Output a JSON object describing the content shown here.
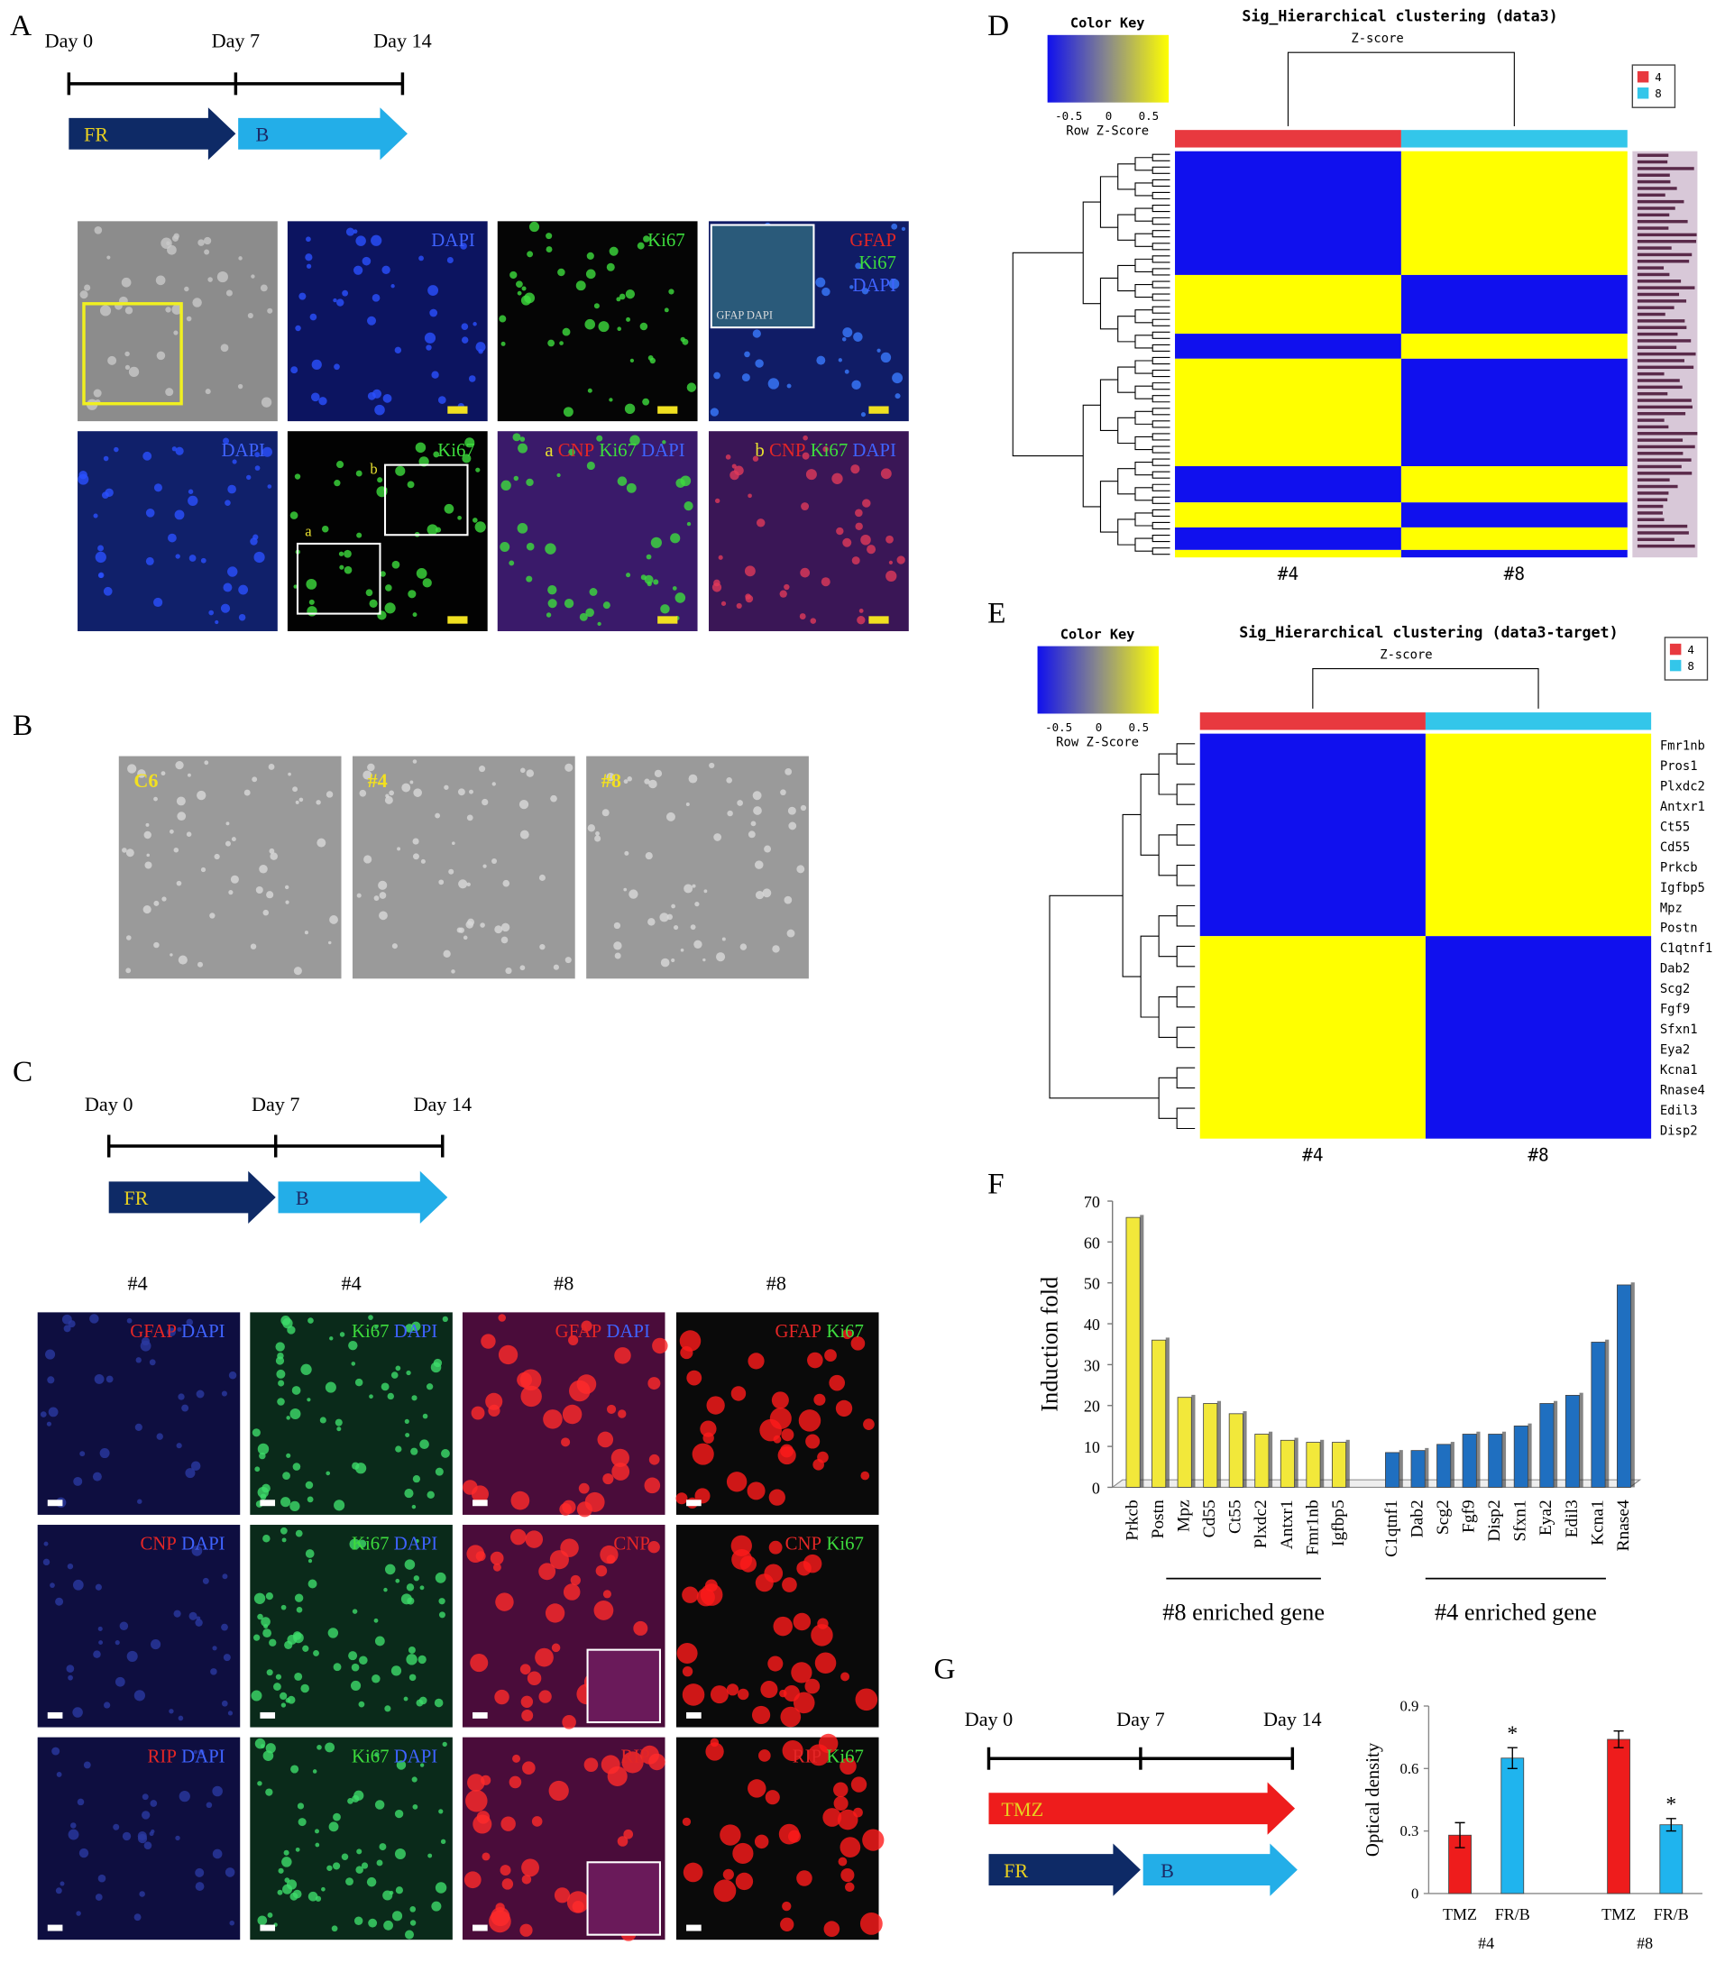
{
  "panel_letters": [
    "A",
    "B",
    "C",
    "D",
    "E",
    "F",
    "G"
  ],
  "panel_A": {
    "timeline": {
      "days": [
        "Day 0",
        "Day 7",
        "Day 14"
      ],
      "arrows": [
        "FR",
        "B"
      ]
    },
    "images": [
      {
        "labels": []
      },
      {
        "labels": [
          {
            "text": "DAPI",
            "color": "#3f63ff"
          }
        ]
      },
      {
        "labels": [
          {
            "text": "Ki67",
            "color": "#3ddc3d"
          }
        ]
      },
      {
        "labels": [
          {
            "text": "GFAP",
            "color": "#e42626"
          },
          {
            "text": "Ki67",
            "color": "#3ddc3d"
          },
          {
            "text": "DAPI",
            "color": "#3f63ff"
          }
        ],
        "inset": "GFAP DAPI"
      },
      {
        "labels": [
          {
            "text": "DAPI",
            "color": "#3f63ff"
          }
        ]
      },
      {
        "labels": [
          {
            "text": "Ki67",
            "color": "#3ddc3d"
          }
        ],
        "boxes": [
          "a",
          "b"
        ]
      },
      {
        "labels": [
          {
            "text": "a",
            "color": "#e8e030"
          },
          {
            "text": "CNP",
            "color": "#e42626"
          },
          {
            "text": "Ki67",
            "color": "#3ddc3d"
          },
          {
            "text": "DAPI",
            "color": "#3f63ff"
          }
        ]
      },
      {
        "labels": [
          {
            "text": "b",
            "color": "#e8e030"
          },
          {
            "text": "CNP",
            "color": "#e42626"
          },
          {
            "text": "Ki67",
            "color": "#3ddc3d"
          },
          {
            "text": "DAPI",
            "color": "#3f63ff"
          }
        ]
      }
    ]
  },
  "panel_B": {
    "images": [
      "C6",
      "#4",
      "#8"
    ]
  },
  "panel_C": {
    "timeline": {
      "days": [
        "Day 0",
        "Day 7",
        "Day 14"
      ],
      "arrows": [
        "FR",
        "B"
      ]
    },
    "column_headers": [
      "#4",
      "#4",
      "#8",
      "#8"
    ],
    "cells": [
      [
        {
          "text": "GFAP",
          "color": "#e42626"
        },
        {
          "text": "DAPI",
          "color": "#3f63ff"
        }
      ],
      [
        {
          "text": "Ki67",
          "color": "#3ddc3d"
        },
        {
          "text": "DAPI",
          "color": "#3f63ff"
        }
      ],
      [
        {
          "text": "GFAP",
          "color": "#e42626"
        },
        {
          "text": "DAPI",
          "color": "#3f63ff"
        }
      ],
      [
        {
          "text": "GFAP",
          "color": "#e42626"
        },
        {
          "text": "Ki67",
          "color": "#3ddc3d"
        }
      ],
      [
        {
          "text": "CNP",
          "color": "#e42626"
        },
        {
          "text": "DAPI",
          "color": "#3f63ff"
        }
      ],
      [
        {
          "text": "Ki67",
          "color": "#3ddc3d"
        },
        {
          "text": "DAPI",
          "color": "#3f63ff"
        }
      ],
      [
        {
          "text": "CNP",
          "color": "#e42626"
        }
      ],
      [
        {
          "text": "CNP",
          "color": "#e42626"
        },
        {
          "text": "Ki67",
          "color": "#3ddc3d"
        }
      ],
      [
        {
          "text": "RIP",
          "color": "#e42626"
        },
        {
          "text": "DAPI",
          "color": "#3f63ff"
        }
      ],
      [
        {
          "text": "Ki67",
          "color": "#3ddc3d"
        },
        {
          "text": "DAPI",
          "color": "#3f63ff"
        }
      ],
      [
        {
          "text": "RIP",
          "color": "#e42626"
        }
      ],
      [
        {
          "text": "RIP",
          "color": "#e42626"
        },
        {
          "text": "Ki67",
          "color": "#3ddc3d"
        }
      ]
    ]
  },
  "panel_D": {
    "title": "Sig_Hierarchical clustering (data3)",
    "subtitle": "Z-score",
    "color_key": {
      "title": "Color Key",
      "ticks": [
        -0.5,
        0,
        0.5
      ],
      "label": "Row Z-Score"
    },
    "legend": [
      {
        "name": "4",
        "color": "#e8393f"
      },
      {
        "name": "8",
        "color": "#33c6ea"
      }
    ],
    "columns": [
      "#4",
      "#8"
    ]
  },
  "panel_E": {
    "title": "Sig_Hierarchical clustering (data3-target)",
    "subtitle": "Z-score",
    "color_key": {
      "title": "Color Key",
      "ticks": [
        -0.5,
        0,
        0.5
      ],
      "label": "Row Z-Score"
    },
    "legend": [
      {
        "name": "4",
        "color": "#e8393f"
      },
      {
        "name": "8",
        "color": "#33c6ea"
      }
    ],
    "columns": [
      "#4",
      "#8"
    ],
    "genes": [
      "Fmr1nb",
      "Pros1",
      "Plxdc2",
      "Antxr1",
      "Ct55",
      "Cd55",
      "Prkcb",
      "Igfbp5",
      "Mpz",
      "Postn",
      "C1qtnf1",
      "Dab2",
      "Scg2",
      "Fgf9",
      "Sfxn1",
      "Eya2",
      "Kcna1",
      "Rnase4",
      "Edil3",
      "Disp2"
    ]
  },
  "panel_G": {
    "timeline": {
      "days": [
        "Day 0",
        "Day 7",
        "Day 14"
      ],
      "arrows": [
        "TMZ",
        "FR",
        "B"
      ]
    }
  },
  "chart_data": [
    {
      "type": "bar",
      "y_label": "Induction fold",
      "categories": [
        "Prkcb",
        "Postn",
        "Mpz",
        "Cd55",
        "Ct55",
        "Plxdc2",
        "Antxr1",
        "Fmr1nb",
        "Igfbp5",
        "C1qtnf1",
        "Dab2",
        "Scg2",
        "Fgf9",
        "Disp2",
        "Sfxn1",
        "Eya2",
        "Edil3",
        "Kcna1",
        "Rnase4"
      ],
      "series": [
        {
          "name": "#8 enriched gene",
          "color": "#f2e83a",
          "values": [
            66,
            36,
            22,
            20.5,
            18,
            13,
            11.5,
            11,
            11,
            null,
            null,
            null,
            null,
            null,
            null,
            null,
            null,
            null,
            null
          ]
        },
        {
          "name": "#4 enriched gene",
          "color": "#1f6fc0",
          "values": [
            null,
            null,
            null,
            null,
            null,
            null,
            null,
            null,
            null,
            8.5,
            9,
            10.5,
            13,
            13,
            15,
            20.5,
            22.5,
            35.5,
            49.5
          ]
        }
      ],
      "ylim": [
        0,
        70
      ],
      "yticks": [
        0,
        10,
        20,
        30,
        40,
        50,
        60,
        70
      ]
    },
    {
      "type": "bar",
      "y_label": "Optical density",
      "categories": [
        "TMZ",
        "FR/B",
        "TMZ",
        "FR/B"
      ],
      "group_labels": [
        "#4",
        "#8"
      ],
      "values": [
        0.28,
        0.65,
        0.74,
        0.33
      ],
      "errors": [
        0.06,
        0.05,
        0.04,
        0.03
      ],
      "colors": [
        "#ee1c1c",
        "#1fb4ee",
        "#ee1c1c",
        "#1fb4ee"
      ],
      "annotations": [
        null,
        "*",
        null,
        "*"
      ],
      "ylim": [
        0,
        0.9
      ],
      "yticks": [
        0,
        0.3,
        0.6,
        0.9
      ]
    }
  ]
}
